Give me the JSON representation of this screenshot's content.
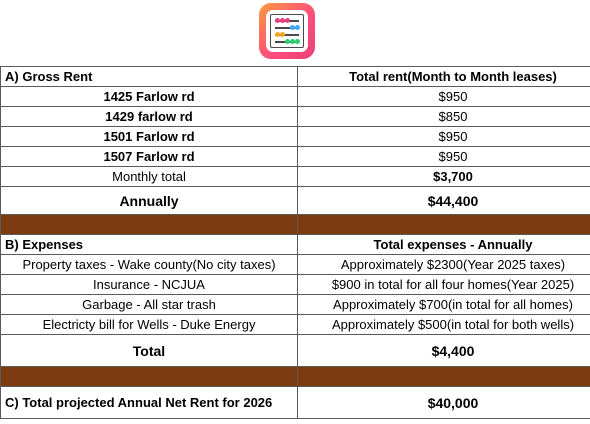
{
  "logo": {
    "icon": "abacus-icon",
    "colors": [
      "#e8407a",
      "#3fa9f5",
      "#f5a623",
      "#2ecc71"
    ]
  },
  "gross_rent": {
    "header": "A) Gross Rent",
    "column_header": "Total rent(Month to Month leases)",
    "properties": [
      {
        "address": "1425 Farlow rd",
        "rent": "$950"
      },
      {
        "address": "1429 farlow rd",
        "rent": "$850"
      },
      {
        "address": "1501 Farlow rd",
        "rent": "$950"
      },
      {
        "address": "1507 Farlow rd",
        "rent": "$950"
      }
    ],
    "monthly_label": "Monthly total",
    "monthly_value": "$3,700",
    "annual_label": "Annually",
    "annual_value": "$44,400"
  },
  "expenses": {
    "header": "B) Expenses",
    "column_header": "Total expenses - Annually",
    "items": [
      {
        "name": "Property taxes - Wake county(No city taxes)",
        "amount": "Approximately $2300(Year 2025 taxes)"
      },
      {
        "name": "Insurance - NCJUA",
        "amount": "$900 in total for all four homes(Year 2025)"
      },
      {
        "name": "Garbage - All star trash",
        "amount": "Approximately $700(in total for all homes)"
      },
      {
        "name": "Electricty bill for Wells - Duke Energy",
        "amount": "Approximately $500(in total for both wells)"
      }
    ],
    "total_label": "Total",
    "total_value": "$4,400"
  },
  "net_rent": {
    "label": "C) Total projected Annual Net Rent for 2026",
    "value": "$40,000"
  },
  "colors": {
    "band": "#7b3a10",
    "grid": "#5a5a5a"
  }
}
